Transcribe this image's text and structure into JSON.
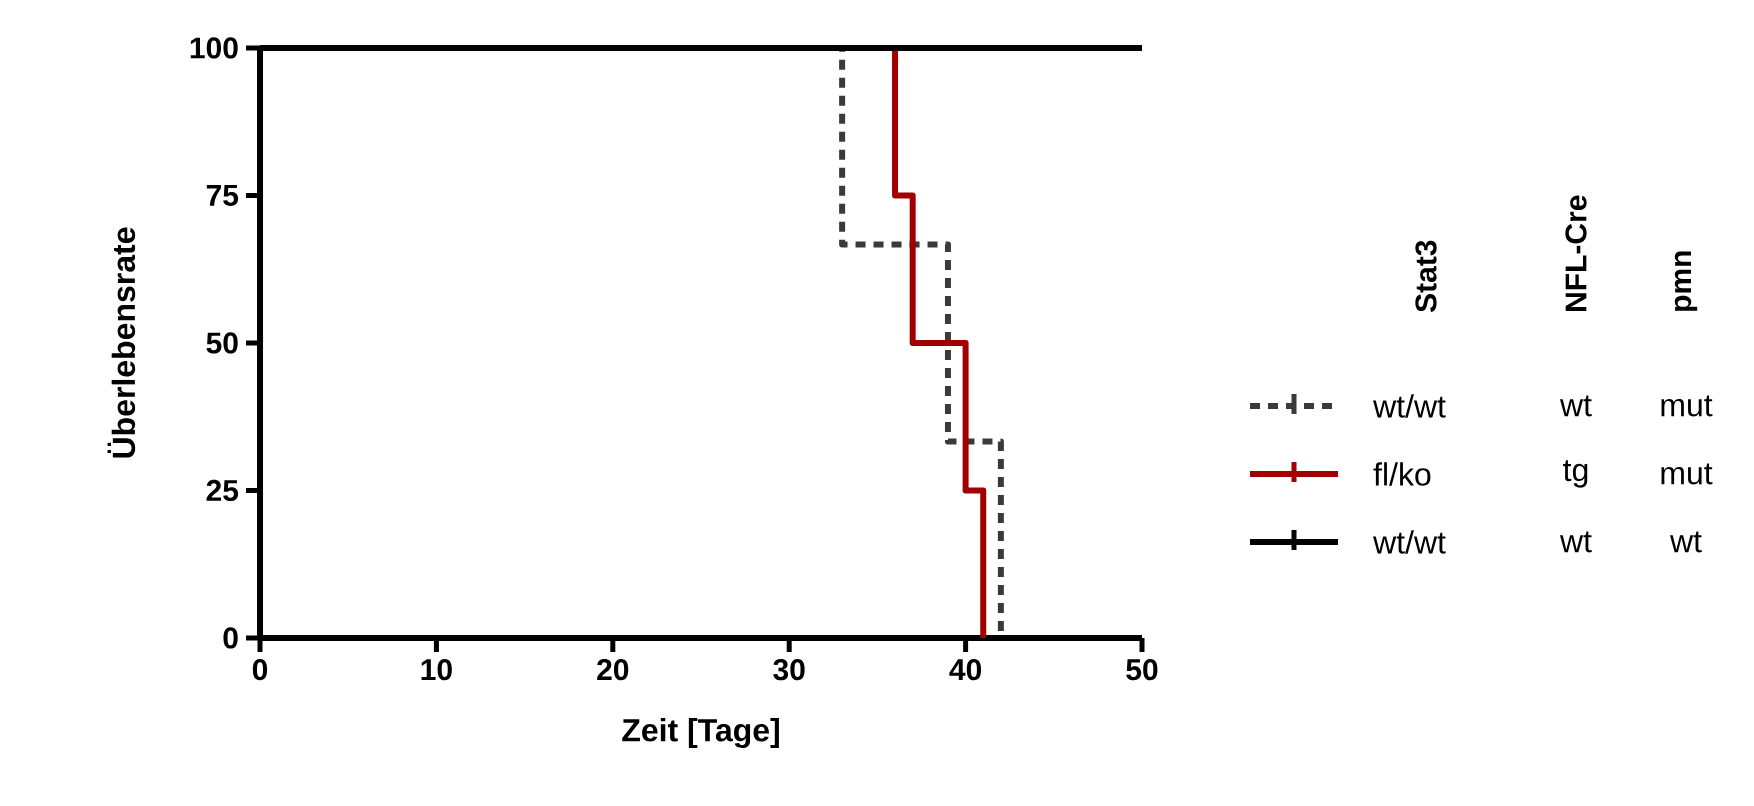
{
  "chart_data": {
    "type": "step",
    "xlabel": "Zeit [Tage]",
    "ylabel": "Überlebensrate",
    "xlim": [
      0,
      50
    ],
    "xticks": [
      0,
      10,
      20,
      30,
      40,
      50
    ],
    "ylim": [
      0,
      100
    ],
    "yticks": [
      0,
      25,
      50,
      75,
      100
    ],
    "legend": "right",
    "series": [
      {
        "name": "wt/wt",
        "color": "#3a3a3a",
        "line_style": "dashed",
        "x": [
          0,
          33,
          39,
          42
        ],
        "values": [
          100,
          66.7,
          33.3,
          0
        ]
      },
      {
        "name": "fl/ko",
        "color": "#a00000",
        "line_style": "solid",
        "x": [
          0,
          36,
          37,
          40,
          41
        ],
        "values": [
          100,
          75,
          50,
          25,
          0
        ]
      },
      {
        "name": "wt/wt",
        "color": "#000000",
        "line_style": "solid",
        "x": [
          0,
          50
        ],
        "values": [
          100,
          100
        ]
      }
    ],
    "annotations": [
      "Stat3",
      "NFL-Cre",
      "pmn",
      "wt",
      "mut",
      "tg",
      "mut",
      "wt",
      "wt"
    ]
  }
}
